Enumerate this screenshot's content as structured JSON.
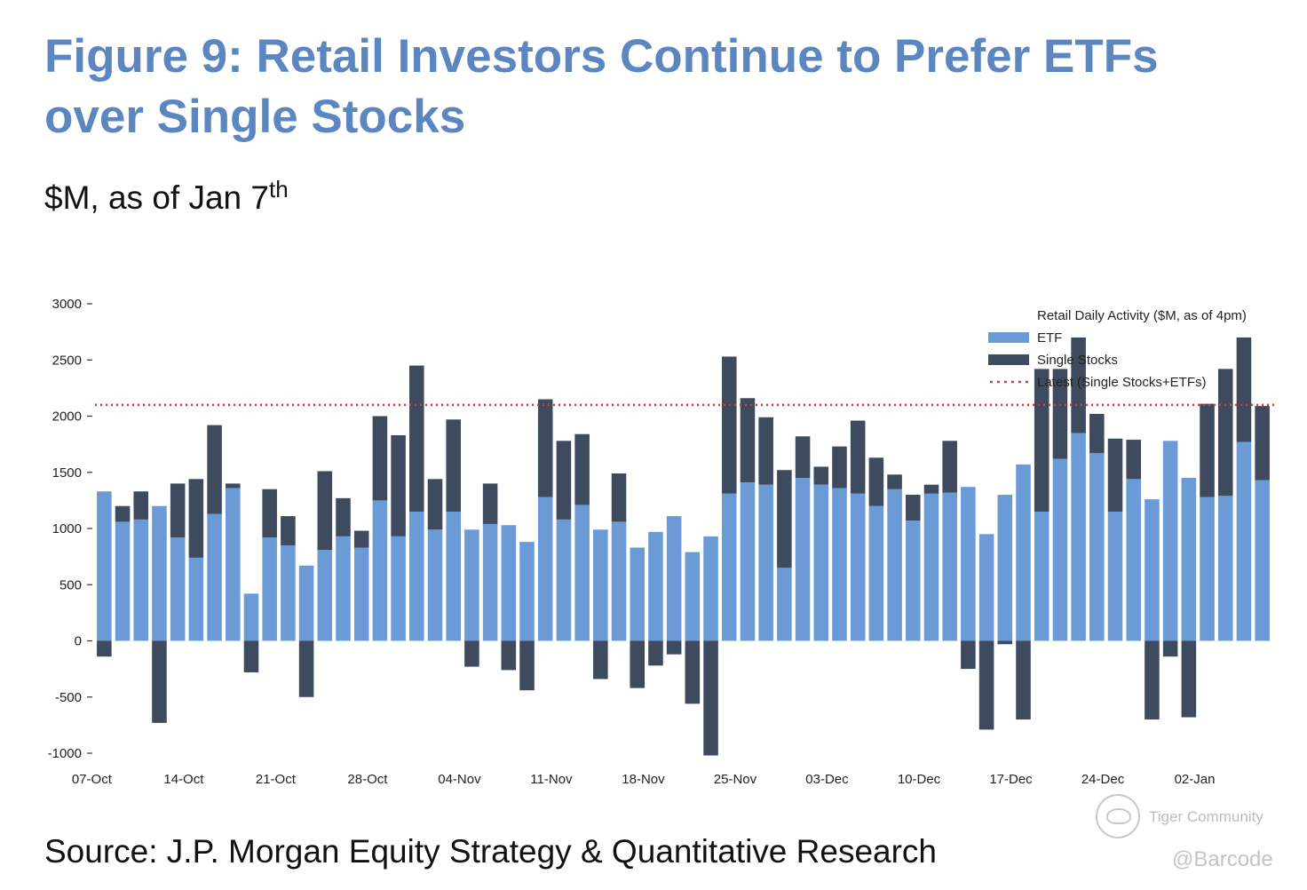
{
  "header": {
    "title": "Figure 9: Retail Investors Continue to Prefer ETFs over Single Stocks",
    "subtitle_main": "$M, as of Jan 7",
    "subtitle_sup": "th"
  },
  "footer": {
    "source": "Source: J.P. Morgan Equity Strategy & Quantitative Research"
  },
  "watermark": {
    "text": "Tiger Community",
    "handle": "@Barcode"
  },
  "colors": {
    "title": "#5b86c0",
    "etf": "#6b9bd6",
    "single": "#3e4a5e",
    "latest": "#d63a3a"
  },
  "chart_data": {
    "type": "bar",
    "stacked": true,
    "ylim": [
      -1000,
      3000
    ],
    "yticks": [
      3000,
      2500,
      2000,
      1500,
      1000,
      500,
      0,
      -500,
      -1000
    ],
    "xtick_labels": [
      "07-Oct",
      "14-Oct",
      "21-Oct",
      "28-Oct",
      "04-Nov",
      "11-Nov",
      "18-Nov",
      "25-Nov",
      "03-Dec",
      "10-Dec",
      "17-Dec",
      "24-Dec",
      "02-Jan"
    ],
    "xtick_positions": [
      0,
      5,
      10,
      15,
      20,
      25,
      30,
      35,
      40,
      45,
      50,
      55,
      60
    ],
    "legend_title": "Retail Daily Activity ($M, as of 4pm)",
    "legend_position": "top-right",
    "latest_value": 2100,
    "series": [
      {
        "name": "ETF",
        "values": [
          1330,
          1060,
          1080,
          1200,
          920,
          740,
          1130,
          1360,
          420,
          920,
          850,
          670,
          810,
          930,
          830,
          1250,
          930,
          1150,
          990,
          1150,
          990,
          1040,
          1030,
          880,
          1280,
          1080,
          1210,
          990,
          1060,
          830,
          970,
          1110,
          790,
          930,
          1310,
          1410,
          1390,
          650,
          1450,
          1390,
          1360,
          1310,
          1200,
          1350,
          1070,
          1310,
          1320,
          1370,
          950,
          1300,
          1570,
          1150,
          1620,
          1850,
          1670,
          1150,
          1440,
          1260,
          1780,
          1450,
          1280,
          1290,
          1770,
          1430
        ]
      },
      {
        "name": "Single Stocks",
        "values": [
          -140,
          140,
          250,
          -730,
          480,
          700,
          790,
          40,
          -280,
          430,
          260,
          -500,
          700,
          340,
          150,
          750,
          900,
          1300,
          450,
          820,
          -230,
          360,
          -260,
          -440,
          870,
          700,
          630,
          -340,
          430,
          -420,
          -220,
          -120,
          -560,
          -1020,
          1220,
          750,
          600,
          870,
          370,
          160,
          370,
          650,
          430,
          130,
          230,
          80,
          460,
          -250,
          -790,
          -30,
          -700,
          1270,
          800,
          850,
          350,
          650,
          350,
          -700,
          -140,
          -680,
          830,
          1130,
          930,
          660
        ]
      }
    ]
  }
}
